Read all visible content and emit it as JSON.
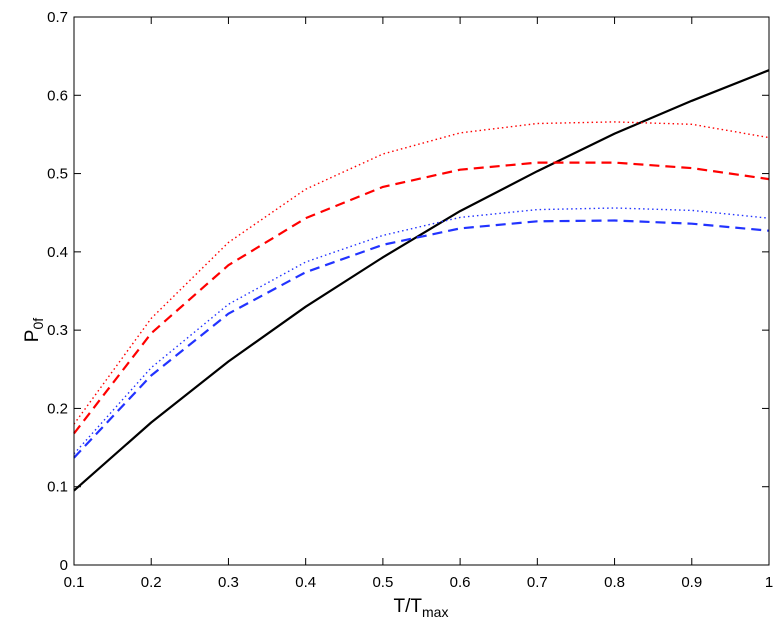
{
  "chart_data": {
    "type": "line",
    "title": "",
    "xlabel": "T/T",
    "xlabel_sub": "max",
    "ylabel": "P",
    "ylabel_sub": "0f",
    "xlim": [
      0.1,
      1
    ],
    "ylim": [
      0,
      0.7
    ],
    "xticks": [
      0.1,
      0.2,
      0.3,
      0.4,
      0.5,
      0.6,
      0.7,
      0.8,
      0.9,
      1
    ],
    "xtick_labels": [
      "0.1",
      "0.2",
      "0.3",
      "0.4",
      "0.5",
      "0.6",
      "0.7",
      "0.8",
      "0.9",
      "1"
    ],
    "yticks": [
      0,
      0.1,
      0.2,
      0.3,
      0.4,
      0.5,
      0.6,
      0.7
    ],
    "ytick_labels": [
      "0",
      "0.1",
      "0.2",
      "0.3",
      "0.4",
      "0.5",
      "0.6",
      "0.7"
    ],
    "grid": false,
    "legend": "none",
    "x": [
      0.1,
      0.2,
      0.3,
      0.4,
      0.5,
      0.6,
      0.7,
      0.8,
      0.9,
      1.0
    ],
    "series": [
      {
        "color": "#000000",
        "style": "solid",
        "width": 2.2,
        "values": [
          0.095,
          0.182,
          0.26,
          0.33,
          0.393,
          0.452,
          0.503,
          0.551,
          0.593,
          0.632
        ]
      },
      {
        "color": "#ff0000",
        "style": "dotted",
        "width": 1.4,
        "values": [
          0.18,
          0.315,
          0.412,
          0.48,
          0.525,
          0.552,
          0.564,
          0.566,
          0.563,
          0.546
        ]
      },
      {
        "color": "#ff0000",
        "style": "dashed",
        "width": 2.2,
        "values": [
          0.168,
          0.296,
          0.383,
          0.443,
          0.483,
          0.505,
          0.514,
          0.514,
          0.507,
          0.493
        ]
      },
      {
        "color": "#2233ff",
        "style": "dotted",
        "width": 1.4,
        "values": [
          0.142,
          0.252,
          0.333,
          0.387,
          0.421,
          0.444,
          0.454,
          0.456,
          0.453,
          0.443
        ]
      },
      {
        "color": "#2233ff",
        "style": "dashed",
        "width": 2.2,
        "values": [
          0.137,
          0.242,
          0.321,
          0.374,
          0.409,
          0.43,
          0.439,
          0.44,
          0.436,
          0.427
        ]
      }
    ]
  }
}
